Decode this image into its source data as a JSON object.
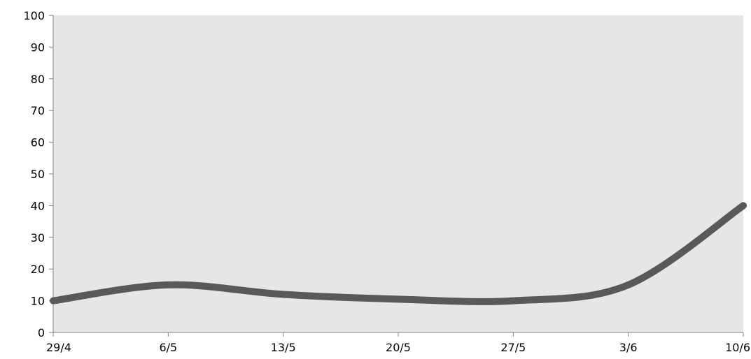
{
  "chart_data": {
    "type": "line",
    "title": "",
    "xlabel": "",
    "ylabel": "",
    "x_ticks": [
      "29/4",
      "6/5",
      "13/5",
      "20/5",
      "27/5",
      "3/6",
      "10/6"
    ],
    "y_ticks": [
      "0",
      "10",
      "20",
      "30",
      "40",
      "50",
      "60",
      "70",
      "80",
      "90",
      "100"
    ],
    "ylim": [
      0,
      100
    ],
    "grid": false,
    "legend": "none",
    "plot_background": "#e6e6e6",
    "series": [
      {
        "color": "#595959",
        "smooth": true,
        "points": [
          {
            "x": "29/4",
            "y": 10
          },
          {
            "x": "6/5",
            "y": 15
          },
          {
            "x": "13/5",
            "y": 12
          },
          {
            "x": "20/5",
            "y": 10.5
          },
          {
            "x": "27/5",
            "y": 10
          },
          {
            "x": "3/6",
            "y": 15
          },
          {
            "x": "10/6",
            "y": 40
          }
        ]
      }
    ]
  }
}
